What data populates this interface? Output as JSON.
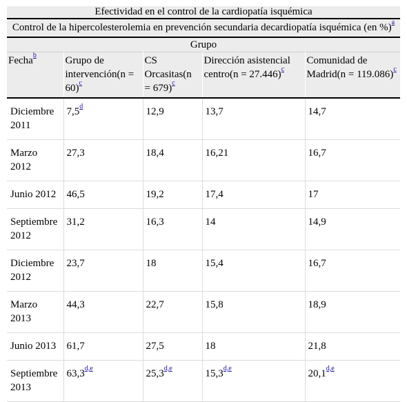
{
  "title": "Efectividad en el control de la cardiopatía isquémica",
  "subtitle": "Control de la hipercolesterolemia en prevención secundaria decardiopatía isquémica (en %)",
  "subtitle_note": "a",
  "group_label": "Grupo",
  "headers": [
    {
      "text": "Fecha",
      "note": "b"
    },
    {
      "text": "Grupo de intervención(n = 60)",
      "note": "c"
    },
    {
      "text": "CS Orcasitas(n = 679)",
      "note": "c"
    },
    {
      "text": "Dirección asistencial centro(n = 27.446)",
      "note": "c"
    },
    {
      "text": "Comunidad de Madrid(n = 119.086)",
      "note": "c"
    }
  ],
  "rows": [
    {
      "date": "Diciembre 2011",
      "cells": [
        {
          "v": "7,5",
          "n": "d"
        },
        {
          "v": "12,9",
          "n": ""
        },
        {
          "v": "13,7",
          "n": ""
        },
        {
          "v": "14,7",
          "n": ""
        }
      ]
    },
    {
      "date": "Marzo 2012",
      "cells": [
        {
          "v": "27,3",
          "n": ""
        },
        {
          "v": "18,4",
          "n": ""
        },
        {
          "v": "16,21",
          "n": ""
        },
        {
          "v": "16,7",
          "n": ""
        }
      ]
    },
    {
      "date": "Junio 2012",
      "cells": [
        {
          "v": "46,5",
          "n": ""
        },
        {
          "v": "19,2",
          "n": ""
        },
        {
          "v": "17,4",
          "n": ""
        },
        {
          "v": "17",
          "n": ""
        }
      ]
    },
    {
      "date": "Septiembre 2012",
      "cells": [
        {
          "v": "31,2",
          "n": ""
        },
        {
          "v": "16,3",
          "n": ""
        },
        {
          "v": "14",
          "n": ""
        },
        {
          "v": "14,9",
          "n": ""
        }
      ]
    },
    {
      "date": "Diciembre 2012",
      "cells": [
        {
          "v": "23,7",
          "n": ""
        },
        {
          "v": "18",
          "n": ""
        },
        {
          "v": "15,4",
          "n": ""
        },
        {
          "v": "16,7",
          "n": ""
        }
      ]
    },
    {
      "date": "Marzo 2013",
      "cells": [
        {
          "v": "44,3",
          "n": ""
        },
        {
          "v": "22,7",
          "n": ""
        },
        {
          "v": "15,8",
          "n": ""
        },
        {
          "v": "18,9",
          "n": ""
        }
      ]
    },
    {
      "date": "Junio 2013",
      "cells": [
        {
          "v": "61,7",
          "n": ""
        },
        {
          "v": "27,5",
          "n": ""
        },
        {
          "v": "18",
          "n": ""
        },
        {
          "v": "21,8",
          "n": ""
        }
      ]
    },
    {
      "date": "Septiembre 2013",
      "cells": [
        {
          "v": "63,3",
          "n": "d,e"
        },
        {
          "v": "25,3",
          "n": "d,e"
        },
        {
          "v": "15,3",
          "n": "d,e"
        },
        {
          "v": "20,1",
          "n": "d,e"
        }
      ]
    }
  ]
}
